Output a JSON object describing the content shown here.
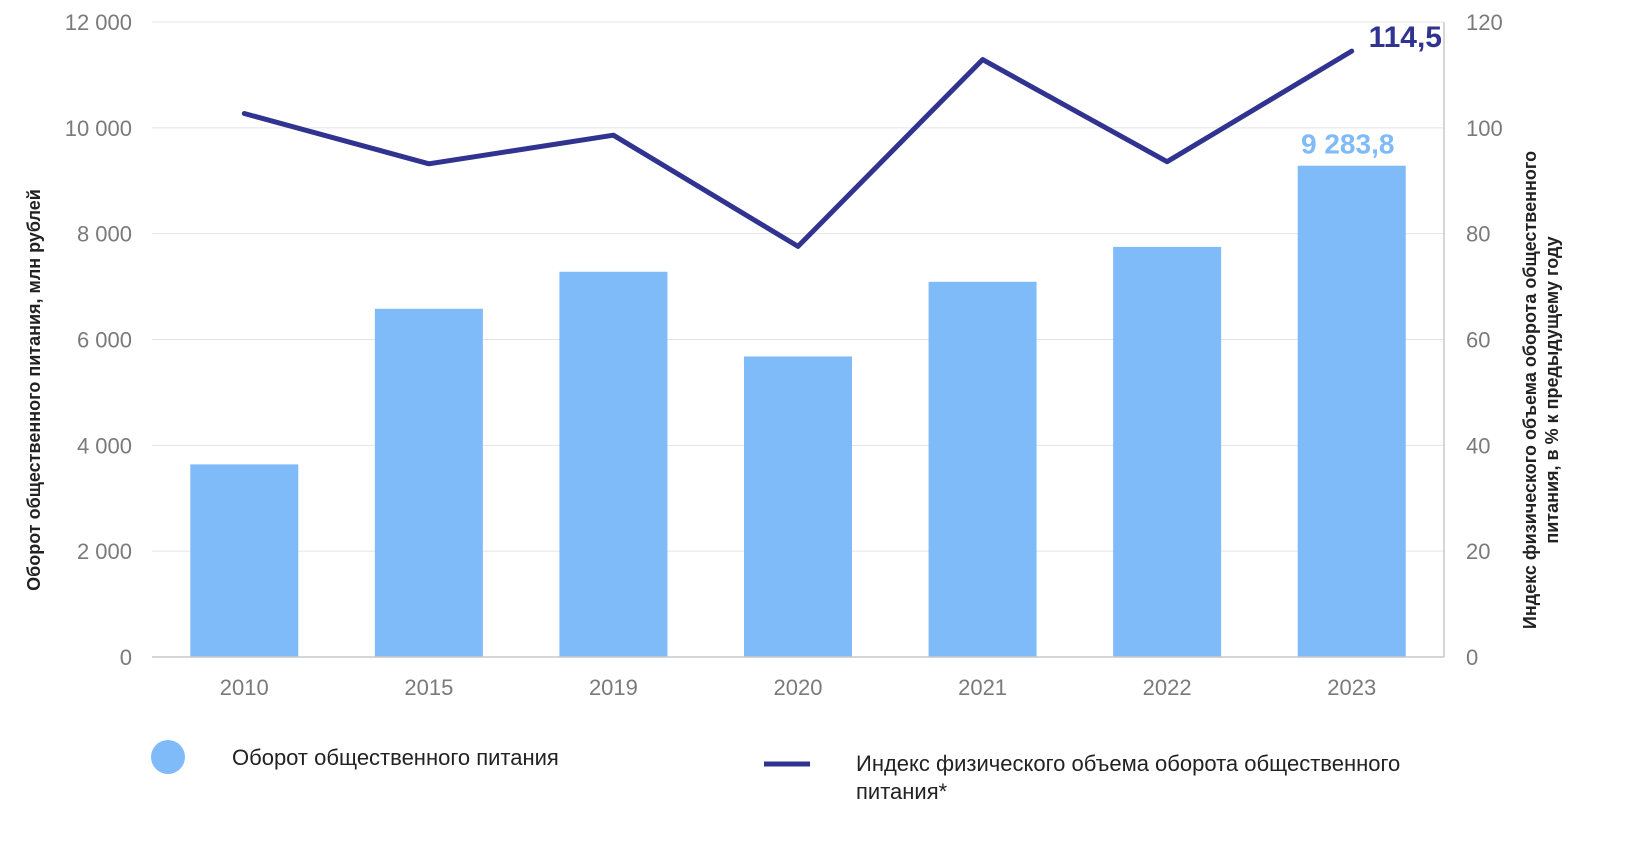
{
  "chart_data": {
    "type": "bar",
    "categories": [
      "2010",
      "2015",
      "2019",
      "2020",
      "2021",
      "2022",
      "2023"
    ],
    "series": [
      {
        "name": "Оборот общественного питания",
        "type": "bar",
        "axis": "left",
        "color": "#7fbaf9",
        "values": [
          3640,
          6580,
          7280,
          5680,
          7090,
          7750,
          9283.8
        ]
      },
      {
        "name": "Индекс физического объема оборота общественного питания*",
        "type": "line",
        "axis": "right",
        "color": "#30338f",
        "values": [
          102.7,
          93.2,
          98.6,
          77.6,
          112.9,
          93.6,
          114.5
        ]
      }
    ],
    "y_left": {
      "label": "Оборот общественного питания, млн рублей",
      "range": [
        0,
        12000
      ],
      "ticks": [
        "0",
        "2 000",
        "4 000",
        "6 000",
        "8 000",
        "10 000",
        "12 000"
      ],
      "tick_values": [
        0,
        2000,
        4000,
        6000,
        8000,
        10000,
        12000
      ]
    },
    "y_right": {
      "label_line1": "Индекс физического объема оборота общественного",
      "label_line2": "питания, в % к предыдущему году",
      "range": [
        0,
        120
      ],
      "ticks": [
        "0",
        "20",
        "40",
        "60",
        "80",
        "100",
        "120"
      ],
      "tick_values": [
        0,
        20,
        40,
        60,
        80,
        100,
        120
      ]
    },
    "annotations": {
      "bar_last": "9 283,8",
      "line_last": "114,5"
    },
    "grid": true,
    "legend_position": "bottom",
    "legend": {
      "bar_label": "Оборот общественного питания",
      "line_label_line1": "Индекс физического объема оборота общественного",
      "line_label_line2": "питания*"
    }
  }
}
